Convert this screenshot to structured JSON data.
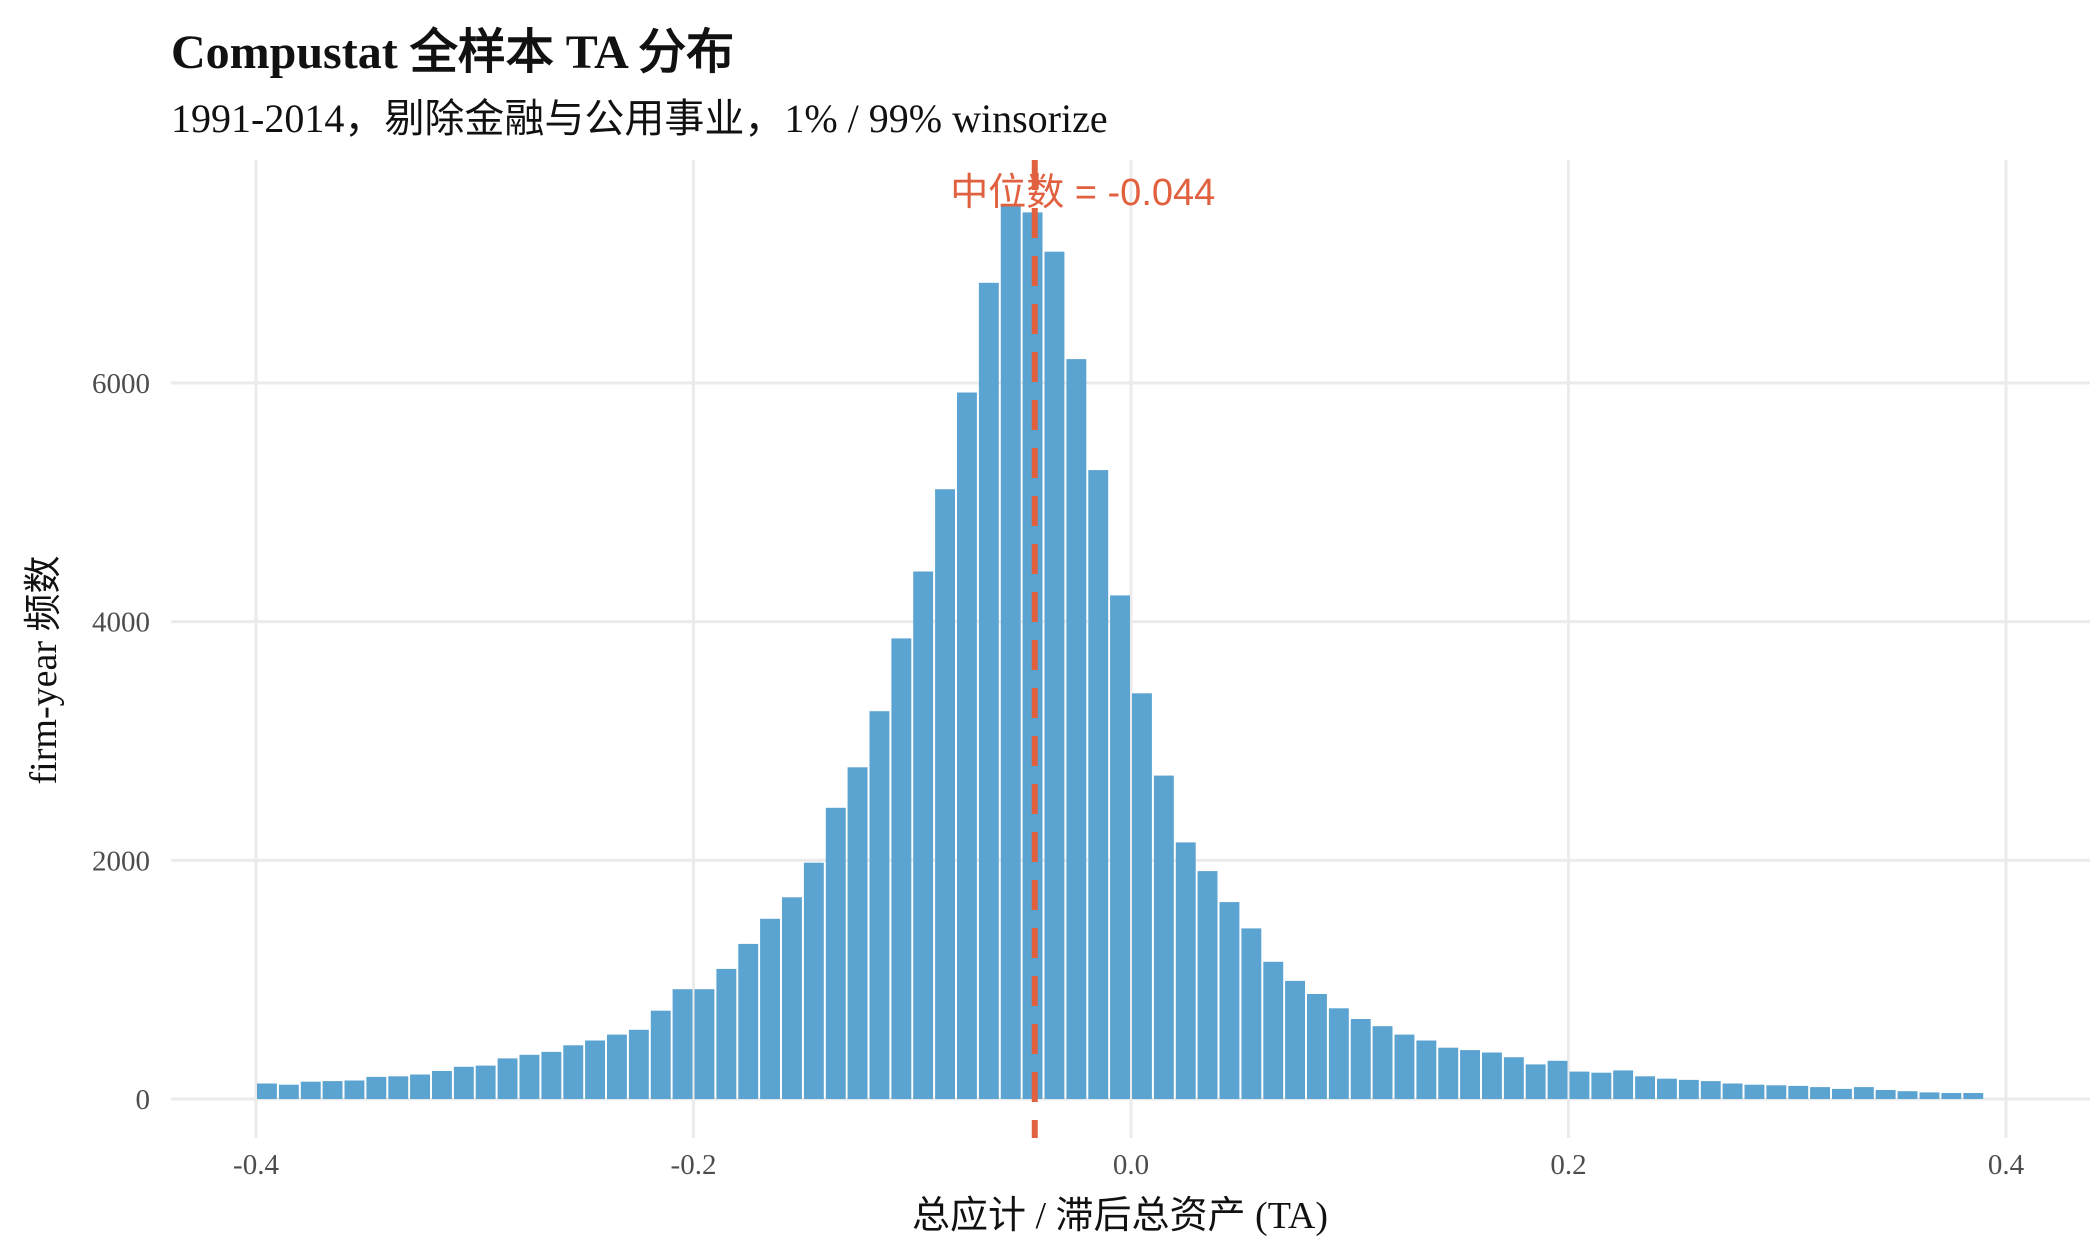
{
  "title": "Compustat 全样本 TA 分布",
  "subtitle": "1991-2014，剔除金融与公用事业，1% / 99% winsorize",
  "colors": {
    "bar": "#5ba3d0",
    "median": "#e0603f",
    "grid": "#ebebeb"
  },
  "chart_data": {
    "type": "bar",
    "title": "Compustat 全样本 TA 分布",
    "subtitle": "1991-2014，剔除金融与公用事业，1% / 99% winsorize",
    "xlabel": "总应计 / 滞后总资产 (TA)",
    "ylabel": "firm-year 频数",
    "xlim": [
      -0.42,
      0.42
    ],
    "ylim": [
      -350,
      7600
    ],
    "xticks": [
      -0.4,
      -0.2,
      0.0,
      0.2,
      0.4
    ],
    "xtick_labels": [
      "-0.4",
      "-0.2",
      "0.0",
      "0.2",
      "0.4"
    ],
    "yticks": [
      0,
      2000,
      4000,
      6000
    ],
    "ytick_labels": [
      "0",
      "2000",
      "4000",
      "6000"
    ],
    "grid": true,
    "bin_start": -0.395,
    "bin_width": 0.01,
    "values": [
      130,
      120,
      145,
      150,
      155,
      185,
      190,
      205,
      235,
      270,
      280,
      340,
      370,
      395,
      450,
      490,
      540,
      580,
      740,
      920,
      920,
      1090,
      1300,
      1510,
      1690,
      1980,
      2440,
      2780,
      3250,
      3860,
      4420,
      5110,
      5920,
      6840,
      7480,
      7430,
      7100,
      6200,
      5270,
      4220,
      3400,
      2710,
      2150,
      1910,
      1650,
      1430,
      1150,
      990,
      880,
      760,
      670,
      610,
      540,
      490,
      430,
      410,
      390,
      350,
      290,
      320,
      230,
      220,
      240,
      190,
      170,
      160,
      150,
      130,
      120,
      115,
      110,
      100,
      85,
      100,
      75,
      65,
      55,
      50,
      50
    ],
    "median": -0.044,
    "median_label": "中位数 = -0.044"
  }
}
